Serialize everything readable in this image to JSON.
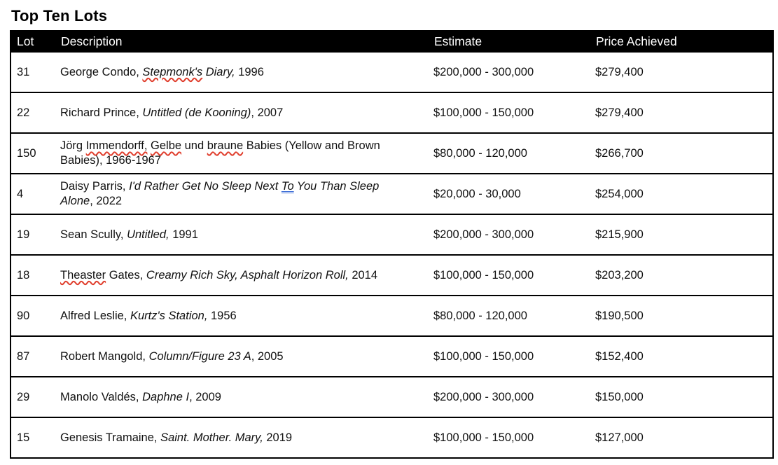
{
  "page": {
    "title": "Top Ten Lots"
  },
  "colors": {
    "header_bg": "#000000",
    "header_text": "#ffffff",
    "body_text": "#111111",
    "border": "#000000",
    "spellcheck_red": "#e03e2d",
    "grammar_blue": "#3a6bd6"
  },
  "table": {
    "columns": [
      {
        "label": "Lot"
      },
      {
        "label": "Description"
      },
      {
        "label": "Estimate"
      },
      {
        "label": "Price Achieved"
      }
    ],
    "rows": [
      {
        "lot": "31",
        "description": [
          {
            "text": "George Condo, "
          },
          {
            "text": "Stepmonk's",
            "italic": true,
            "mark": "spell"
          },
          {
            "text": " Diary,",
            "italic": true
          },
          {
            "text": " 1996"
          }
        ],
        "estimate": "$200,000 - 300,000",
        "price": "$279,400"
      },
      {
        "lot": "22",
        "description": [
          {
            "text": "Richard Prince, "
          },
          {
            "text": "Untitled (de Kooning)",
            "italic": true
          },
          {
            "text": ", 2007"
          }
        ],
        "estimate": "$100,000 - 150,000",
        "price": "$279,400"
      },
      {
        "lot": "150",
        "description": [
          {
            "text": "Jörg "
          },
          {
            "text": "Immendorff,",
            "mark": "spell"
          },
          {
            "text": " "
          },
          {
            "text": "Gelbe",
            "mark": "spell"
          },
          {
            "text": " und "
          },
          {
            "text": "braune",
            "mark": "spell"
          },
          {
            "text": " Babies (Yellow and Brown Babies), 1966-1967"
          }
        ],
        "estimate": "$80,000 - 120,000",
        "price": "$266,700"
      },
      {
        "lot": "4",
        "description": [
          {
            "text": "Daisy Parris, "
          },
          {
            "text": "I'd Rather Get No Sleep Next ",
            "italic": true
          },
          {
            "text": "To",
            "italic": true,
            "mark": "grammar"
          },
          {
            "text": " You Than Sleep Alone",
            "italic": true
          },
          {
            "text": ", 2022"
          }
        ],
        "estimate": "$20,000 - 30,000",
        "price": "$254,000"
      },
      {
        "lot": "19",
        "description": [
          {
            "text": "Sean Scully, "
          },
          {
            "text": "Untitled,",
            "italic": true
          },
          {
            "text": " 1991"
          }
        ],
        "estimate": "$200,000 - 300,000",
        "price": "$215,900"
      },
      {
        "lot": "18",
        "description": [
          {
            "text": "Theaster",
            "mark": "spell"
          },
          {
            "text": " Gates, "
          },
          {
            "text": "Creamy Rich Sky, Asphalt Horizon Roll,",
            "italic": true
          },
          {
            "text": " 2014"
          }
        ],
        "estimate": "$100,000 - 150,000",
        "price": "$203,200"
      },
      {
        "lot": "90",
        "description": [
          {
            "text": "Alfred Leslie, "
          },
          {
            "text": "Kurtz's Station,",
            "italic": true
          },
          {
            "text": " 1956"
          }
        ],
        "estimate": "$80,000 - 120,000",
        "price": "$190,500"
      },
      {
        "lot": "87",
        "description": [
          {
            "text": "Robert Mangold, "
          },
          {
            "text": "Column/Figure 23 A",
            "italic": true
          },
          {
            "text": ", 2005"
          }
        ],
        "estimate": "$100,000 - 150,000",
        "price": "$152,400"
      },
      {
        "lot": "29",
        "description": [
          {
            "text": "Manolo Valdés, "
          },
          {
            "text": "Daphne I",
            "italic": true
          },
          {
            "text": ", 2009"
          }
        ],
        "estimate": "$200,000 - 300,000",
        "price": "$150,000"
      },
      {
        "lot": "15",
        "description": [
          {
            "text": "Genesis Tramaine, "
          },
          {
            "text": "Saint. Mother. Mary,",
            "italic": true
          },
          {
            "text": " 2019"
          }
        ],
        "estimate": "$100,000 - 150,000",
        "price": "$127,000"
      }
    ]
  }
}
